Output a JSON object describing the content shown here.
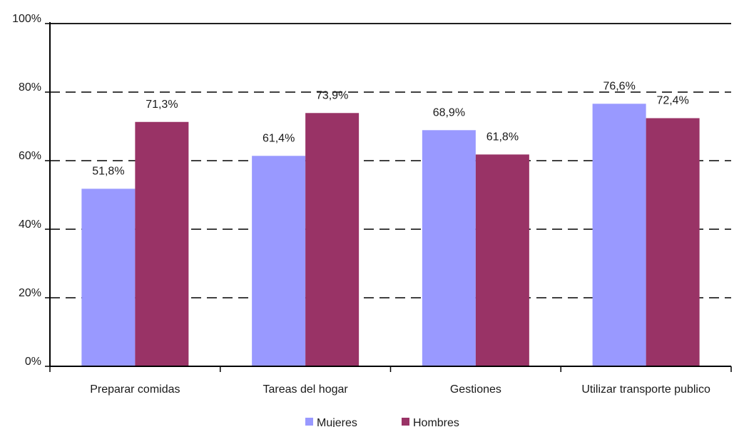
{
  "chart_data": {
    "type": "bar",
    "categories": [
      "Preparar comidas",
      "Tareas del hogar",
      "Gestiones",
      "Utilizar transporte publico"
    ],
    "series": [
      {
        "name": "Mujeres",
        "values": [
          51.8,
          61.4,
          68.9,
          76.6
        ],
        "labels": [
          "51,8%",
          "61,4%",
          "68,9%",
          "76,6%"
        ],
        "color": "#9999ff"
      },
      {
        "name": "Hombres",
        "values": [
          71.3,
          73.9,
          61.8,
          72.4
        ],
        "labels": [
          "71,3%",
          "73,9%",
          "61,8%",
          "72,4%"
        ],
        "color": "#993366"
      }
    ],
    "yticks": [
      {
        "value": 0,
        "label": "0%"
      },
      {
        "value": 20,
        "label": "20%"
      },
      {
        "value": 40,
        "label": "40%"
      },
      {
        "value": 60,
        "label": "60%"
      },
      {
        "value": 80,
        "label": "80%"
      },
      {
        "value": 100,
        "label": "100%"
      }
    ],
    "ylim": [
      0,
      100
    ],
    "grid": "dashed horizontal",
    "legend_position": "bottom"
  }
}
